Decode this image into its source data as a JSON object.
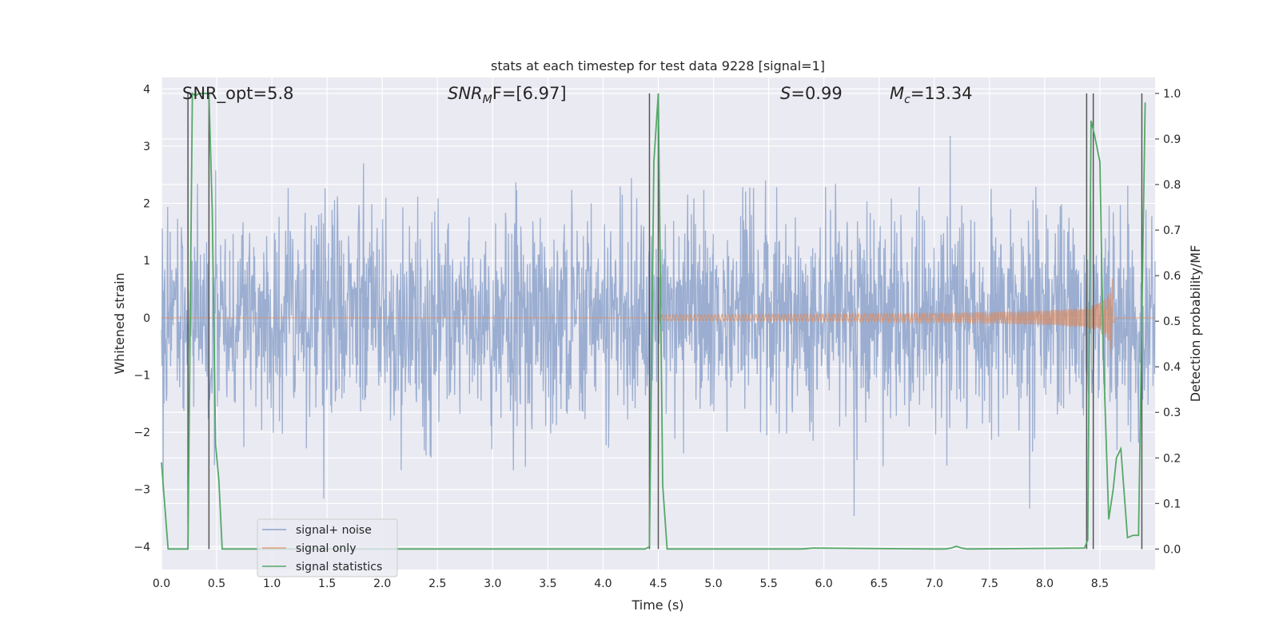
{
  "chart_data": {
    "type": "line",
    "title": "stats at each timestep for test data 9228 [signal=1]",
    "xlabel": "Time (s)",
    "ylabel": "Whitened strain",
    "ylabel_right": "Detection probability/MF",
    "xlim": [
      0.0,
      9.0
    ],
    "ylim_left": [
      -4.4,
      4.2
    ],
    "ylim_right": [
      -0.045,
      1.035
    ],
    "x_ticks": [
      "0.0",
      "0.5",
      "1.0",
      "1.5",
      "2.0",
      "2.5",
      "3.0",
      "3.5",
      "4.0",
      "4.5",
      "5.0",
      "5.5",
      "6.0",
      "6.5",
      "7.0",
      "7.5",
      "8.0",
      "8.5"
    ],
    "y_ticks_left": [
      "−4",
      "−3",
      "−2",
      "−1",
      "0",
      "1",
      "2",
      "3",
      "4"
    ],
    "y_ticks_right": [
      "0.0",
      "0.1",
      "0.2",
      "0.3",
      "0.4",
      "0.5",
      "0.6",
      "0.7",
      "0.8",
      "0.9",
      "1.0"
    ],
    "grid": true,
    "legend_position": "lower-left",
    "annotations": {
      "snr_opt": "SNR_opt=5.8",
      "snr_mf_base": "SNR",
      "snr_mf_sub": "M",
      "snr_mf_rest": "F=[6.97]",
      "s_label": "S",
      "s_value": "=0.99",
      "mc_base": "M",
      "mc_sub": "c",
      "mc_value": "=13.34"
    },
    "series": [
      {
        "name": "signal+ noise",
        "color": "#4c72b0",
        "axis": "left",
        "description": "whitened noise, roughly +/-1.5 band with spikes up to ~3"
      },
      {
        "name": "signal only",
        "color": "#dd8452",
        "axis": "left",
        "description": "chirp starting ~4.5 s, amplitude growing to ~1.1 at 8.6 s then zero"
      },
      {
        "name": "signal statistics",
        "color": "#55a868",
        "axis": "right",
        "x": [
          0.0,
          0.06,
          0.24,
          0.28,
          0.31,
          0.34,
          0.37,
          0.4,
          0.43,
          0.46,
          0.49,
          0.52,
          0.55,
          0.6,
          4.38,
          4.42,
          4.46,
          4.5,
          4.54,
          4.58,
          4.63,
          5.8,
          5.9,
          7.0,
          7.1,
          7.15,
          7.2,
          7.25,
          7.3,
          8.36,
          8.39,
          8.42,
          8.45,
          8.5,
          8.53,
          8.58,
          8.62,
          8.65,
          8.69,
          8.75,
          8.8,
          8.85,
          8.91
        ],
        "y": [
          0.19,
          0.0,
          0.0,
          1.0,
          0.995,
          1.0,
          1.0,
          1.0,
          1.0,
          0.74,
          0.23,
          0.15,
          0.0,
          0.0,
          0.0,
          0.005,
          0.85,
          1.0,
          0.14,
          0.0,
          0.0,
          0.0,
          0.002,
          0.0,
          0.0,
          0.002,
          0.006,
          0.002,
          0.0,
          0.002,
          0.02,
          0.94,
          0.91,
          0.85,
          0.44,
          0.065,
          0.13,
          0.2,
          0.22,
          0.025,
          0.03,
          0.03,
          0.98
        ]
      }
    ],
    "vertical_lines_x": [
      0.24,
      0.43,
      4.42,
      4.5,
      8.38,
      8.44,
      8.88
    ]
  }
}
